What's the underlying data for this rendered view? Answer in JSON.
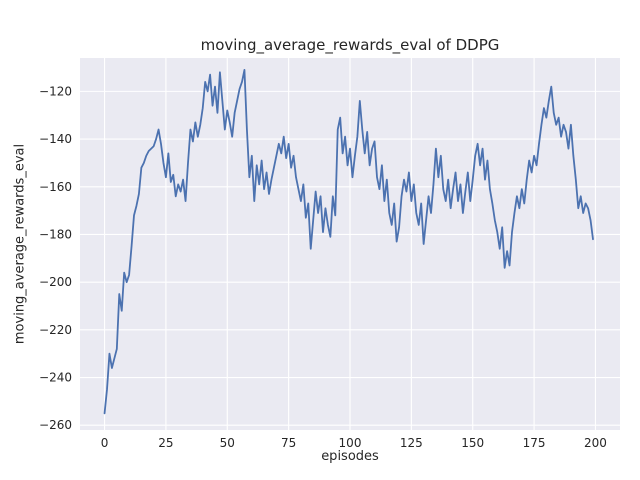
{
  "chart_data": {
    "type": "line",
    "title": "moving_average_rewards_eval of DDPG",
    "xlabel": "episodes",
    "ylabel": "moving_average_rewards_eval",
    "xlim": [
      -10,
      210
    ],
    "ylim": [
      -262,
      -106
    ],
    "xticks": [
      0,
      25,
      50,
      75,
      100,
      125,
      150,
      175,
      200
    ],
    "yticks": [
      -260,
      -240,
      -220,
      -200,
      -180,
      -160,
      -140,
      -120
    ],
    "grid": true,
    "legend": "none",
    "style": {
      "line_color": "#4c72b0",
      "axes_facecolor": "#eaeaf2",
      "grid_color": "#ffffff",
      "text_color": "#262626"
    },
    "series": [
      {
        "name": "moving_average_rewards_eval",
        "points": [
          [
            0,
            -255
          ],
          [
            1,
            -245
          ],
          [
            2,
            -230
          ],
          [
            3,
            -236
          ],
          [
            4,
            -232
          ],
          [
            5,
            -228
          ],
          [
            6,
            -205
          ],
          [
            7,
            -212
          ],
          [
            8,
            -196
          ],
          [
            9,
            -200
          ],
          [
            10,
            -197
          ],
          [
            11,
            -185
          ],
          [
            12,
            -172
          ],
          [
            13,
            -168
          ],
          [
            14,
            -163
          ],
          [
            15,
            -152
          ],
          [
            16,
            -150
          ],
          [
            17,
            -147
          ],
          [
            18,
            -145
          ],
          [
            19,
            -144
          ],
          [
            20,
            -143
          ],
          [
            21,
            -140
          ],
          [
            22,
            -136
          ],
          [
            23,
            -142
          ],
          [
            24,
            -150
          ],
          [
            25,
            -156
          ],
          [
            26,
            -146
          ],
          [
            27,
            -158
          ],
          [
            28,
            -155
          ],
          [
            29,
            -164
          ],
          [
            30,
            -159
          ],
          [
            31,
            -162
          ],
          [
            32,
            -157
          ],
          [
            33,
            -166
          ],
          [
            34,
            -150
          ],
          [
            35,
            -136
          ],
          [
            36,
            -141
          ],
          [
            37,
            -133
          ],
          [
            38,
            -139
          ],
          [
            39,
            -134
          ],
          [
            40,
            -127
          ],
          [
            41,
            -116
          ],
          [
            42,
            -120
          ],
          [
            43,
            -113
          ],
          [
            44,
            -126
          ],
          [
            45,
            -118
          ],
          [
            46,
            -129
          ],
          [
            47,
            -112
          ],
          [
            48,
            -124
          ],
          [
            49,
            -136
          ],
          [
            50,
            -128
          ],
          [
            51,
            -133
          ],
          [
            52,
            -139
          ],
          [
            53,
            -129
          ],
          [
            54,
            -124
          ],
          [
            55,
            -119
          ],
          [
            56,
            -116
          ],
          [
            57,
            -111
          ],
          [
            58,
            -136
          ],
          [
            59,
            -156
          ],
          [
            60,
            -147
          ],
          [
            61,
            -166
          ],
          [
            62,
            -151
          ],
          [
            63,
            -159
          ],
          [
            64,
            -149
          ],
          [
            65,
            -161
          ],
          [
            66,
            -154
          ],
          [
            67,
            -163
          ],
          [
            68,
            -157
          ],
          [
            69,
            -152
          ],
          [
            70,
            -147
          ],
          [
            71,
            -142
          ],
          [
            72,
            -146
          ],
          [
            73,
            -139
          ],
          [
            74,
            -148
          ],
          [
            75,
            -142
          ],
          [
            76,
            -152
          ],
          [
            77,
            -147
          ],
          [
            78,
            -156
          ],
          [
            79,
            -161
          ],
          [
            80,
            -166
          ],
          [
            81,
            -159
          ],
          [
            82,
            -173
          ],
          [
            83,
            -167
          ],
          [
            84,
            -186
          ],
          [
            85,
            -174
          ],
          [
            86,
            -162
          ],
          [
            87,
            -171
          ],
          [
            88,
            -164
          ],
          [
            89,
            -179
          ],
          [
            90,
            -169
          ],
          [
            91,
            -176
          ],
          [
            92,
            -181
          ],
          [
            93,
            -164
          ],
          [
            94,
            -172
          ],
          [
            95,
            -136
          ],
          [
            96,
            -131
          ],
          [
            97,
            -146
          ],
          [
            98,
            -139
          ],
          [
            99,
            -151
          ],
          [
            100,
            -144
          ],
          [
            101,
            -156
          ],
          [
            102,
            -147
          ],
          [
            103,
            -139
          ],
          [
            104,
            -124
          ],
          [
            105,
            -136
          ],
          [
            106,
            -146
          ],
          [
            107,
            -137
          ],
          [
            108,
            -151
          ],
          [
            109,
            -144
          ],
          [
            110,
            -141
          ],
          [
            111,
            -156
          ],
          [
            112,
            -161
          ],
          [
            113,
            -151
          ],
          [
            114,
            -166
          ],
          [
            115,
            -157
          ],
          [
            116,
            -171
          ],
          [
            117,
            -176
          ],
          [
            118,
            -167
          ],
          [
            119,
            -183
          ],
          [
            120,
            -177
          ],
          [
            121,
            -164
          ],
          [
            122,
            -157
          ],
          [
            123,
            -162
          ],
          [
            124,
            -154
          ],
          [
            125,
            -166
          ],
          [
            126,
            -159
          ],
          [
            127,
            -171
          ],
          [
            128,
            -176
          ],
          [
            129,
            -167
          ],
          [
            130,
            -184
          ],
          [
            131,
            -174
          ],
          [
            132,
            -164
          ],
          [
            133,
            -171
          ],
          [
            134,
            -159
          ],
          [
            135,
            -144
          ],
          [
            136,
            -156
          ],
          [
            137,
            -147
          ],
          [
            138,
            -161
          ],
          [
            139,
            -166
          ],
          [
            140,
            -157
          ],
          [
            141,
            -169
          ],
          [
            142,
            -161
          ],
          [
            143,
            -154
          ],
          [
            144,
            -166
          ],
          [
            145,
            -159
          ],
          [
            146,
            -171
          ],
          [
            147,
            -162
          ],
          [
            148,
            -154
          ],
          [
            149,
            -166
          ],
          [
            150,
            -157
          ],
          [
            151,
            -147
          ],
          [
            152,
            -142
          ],
          [
            153,
            -151
          ],
          [
            154,
            -144
          ],
          [
            155,
            -157
          ],
          [
            156,
            -149
          ],
          [
            157,
            -161
          ],
          [
            158,
            -167
          ],
          [
            159,
            -174
          ],
          [
            160,
            -179
          ],
          [
            161,
            -186
          ],
          [
            162,
            -177
          ],
          [
            163,
            -194
          ],
          [
            164,
            -187
          ],
          [
            165,
            -193
          ],
          [
            166,
            -179
          ],
          [
            167,
            -171
          ],
          [
            168,
            -164
          ],
          [
            169,
            -169
          ],
          [
            170,
            -161
          ],
          [
            171,
            -167
          ],
          [
            172,
            -157
          ],
          [
            173,
            -149
          ],
          [
            174,
            -154
          ],
          [
            175,
            -147
          ],
          [
            176,
            -151
          ],
          [
            177,
            -142
          ],
          [
            178,
            -134
          ],
          [
            179,
            -127
          ],
          [
            180,
            -131
          ],
          [
            181,
            -124
          ],
          [
            182,
            -118
          ],
          [
            183,
            -129
          ],
          [
            184,
            -134
          ],
          [
            185,
            -131
          ],
          [
            186,
            -139
          ],
          [
            187,
            -134
          ],
          [
            188,
            -137
          ],
          [
            189,
            -144
          ],
          [
            190,
            -134
          ],
          [
            191,
            -147
          ],
          [
            192,
            -157
          ],
          [
            193,
            -169
          ],
          [
            194,
            -164
          ],
          [
            195,
            -171
          ],
          [
            196,
            -167
          ],
          [
            197,
            -169
          ],
          [
            198,
            -174
          ],
          [
            199,
            -182
          ]
        ]
      }
    ]
  }
}
